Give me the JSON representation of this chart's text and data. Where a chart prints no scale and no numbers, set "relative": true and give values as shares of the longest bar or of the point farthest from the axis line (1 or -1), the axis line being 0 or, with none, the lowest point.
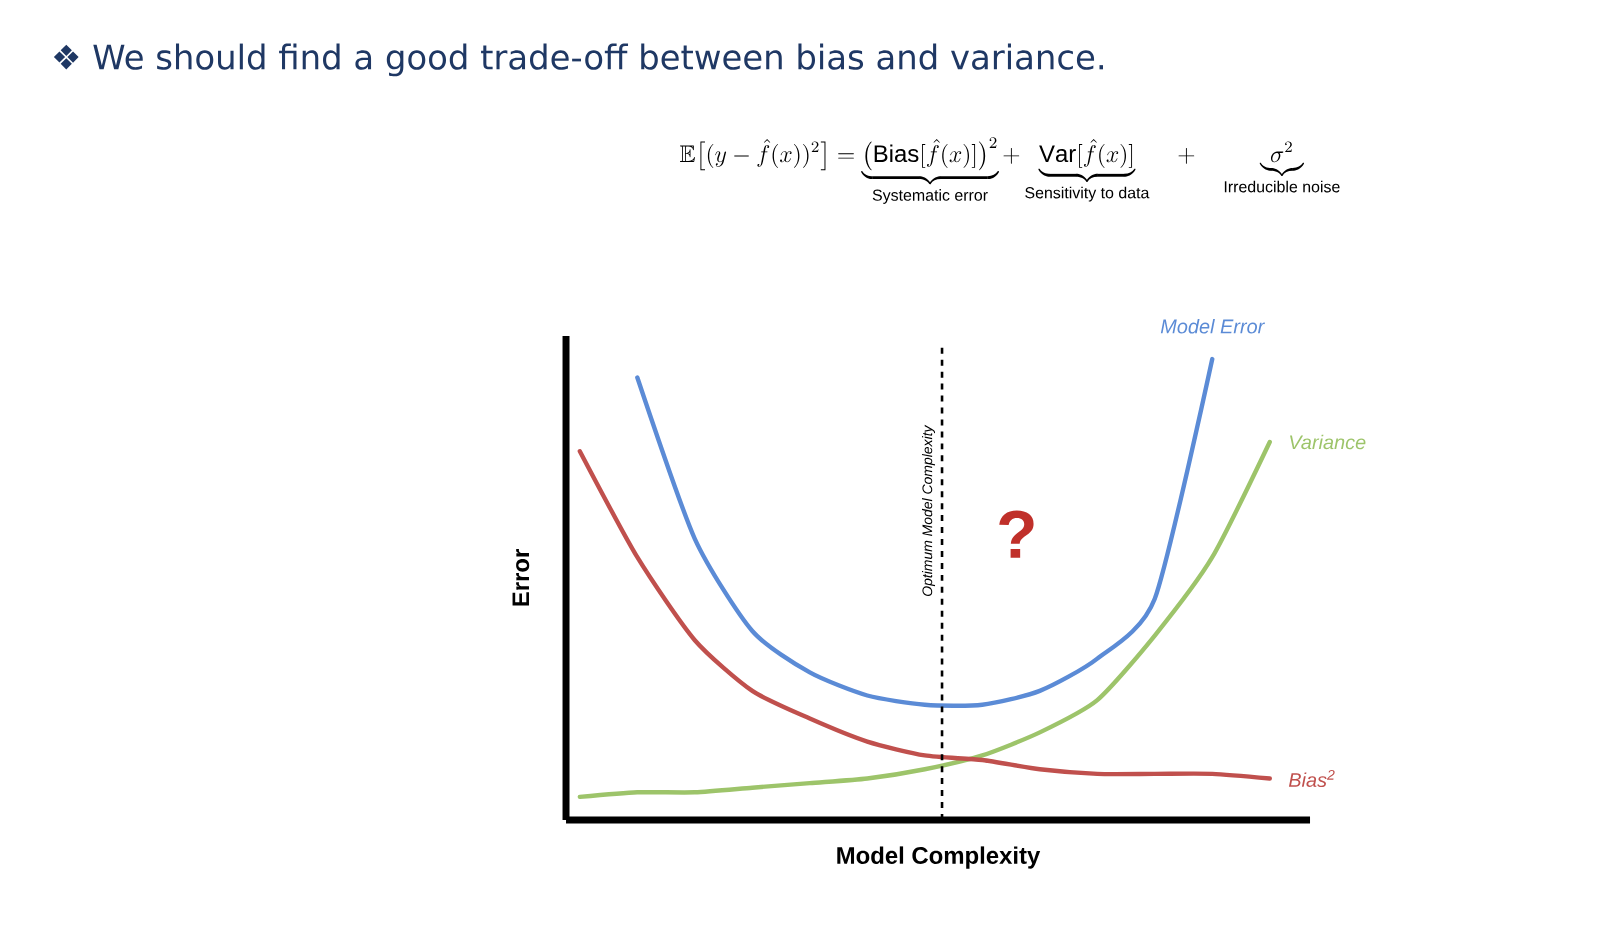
{
  "chart_data": {
    "type": "line",
    "title": "❖ We should find a good trade-off between bias and variance.",
    "xlabel": "Model Complexity",
    "ylabel": "Error",
    "relative": true,
    "legend": false,
    "marker": "none",
    "line_style": "solid",
    "tick_labels": false,
    "categories": [
      null,
      null,
      null,
      null,
      null,
      null,
      null,
      null,
      null,
      null,
      null,
      null,
      null
    ],
    "series": [
      {
        "name": "Model Error",
        "color": "#5b8bd6",
        "values": [
          null,
          0.96,
          0.61,
          0.41,
          0.32,
          0.27,
          0.25,
          0.25,
          0.28,
          0.35,
          0.48,
          1.0,
          null
        ]
      },
      {
        "name": "Variance",
        "color": "#9dc46a",
        "values": [
          0.05,
          0.06,
          0.06,
          0.07,
          0.08,
          0.09,
          0.11,
          0.14,
          0.19,
          0.26,
          0.4,
          0.57,
          0.82
        ]
      },
      {
        "name": "Bias$^{2}$",
        "color": "#c0504d",
        "values": [
          0.8,
          0.57,
          0.39,
          0.28,
          0.22,
          0.17,
          0.14,
          0.13,
          0.11,
          0.1,
          0.1,
          0.1,
          0.09
        ]
      }
    ],
    "annotations": [
      "Optimum Model Complexity",
      "\\mathbb{E}\\big[(y-\\hat{f}(x))^2\\big] = \\underbrace{\\big(\\mathrm{Bias}[\\hat{f}(x)]\\big)^2}_{\\text{Systematic error}} + \\underbrace{\\mathrm{Var}[\\hat{f}(x)]}_{\\text{Sensitivity to data}} \\quad + \\quad \\underbrace{\\sigma^2}_{\\text{Irreducible noise}}",
      "?"
    ]
  }
}
